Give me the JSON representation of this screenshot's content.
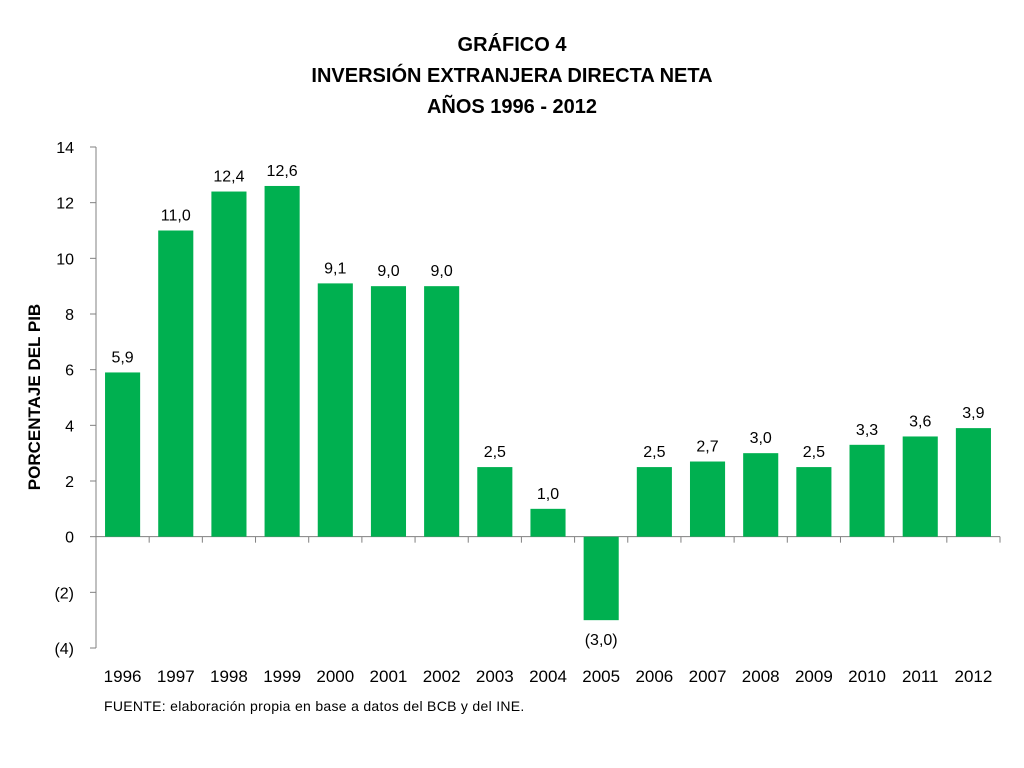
{
  "chart_data": {
    "type": "bar",
    "title_lines": [
      "GRÁFICO 4",
      "INVERSIÓN EXTRANJERA DIRECTA NETA",
      "AÑOS 1996 - 2012"
    ],
    "ylabel": "PORCENTAJE DEL PIB",
    "xlabel": "",
    "categories": [
      "1996",
      "1997",
      "1998",
      "1999",
      "2000",
      "2001",
      "2002",
      "2003",
      "2004",
      "2005",
      "2006",
      "2007",
      "2008",
      "2009",
      "2010",
      "2011",
      "2012"
    ],
    "values": [
      5.9,
      11.0,
      12.4,
      12.6,
      9.1,
      9.0,
      9.0,
      2.5,
      1.0,
      -3.0,
      2.5,
      2.7,
      3.0,
      2.5,
      3.3,
      3.6,
      3.9
    ],
    "data_labels": [
      "5,9",
      "11,0",
      "12,4",
      "12,6",
      "9,1",
      "9,0",
      "9,0",
      "2,5",
      "1,0",
      "(3,0)",
      "2,5",
      "2,7",
      "3,0",
      "2,5",
      "3,3",
      "3,6",
      "3,9"
    ],
    "yticks": [
      14,
      12,
      10,
      8,
      6,
      4,
      2,
      0,
      -2,
      -4
    ],
    "ytick_labels": [
      "14",
      "12",
      "10",
      "8",
      "6",
      "4",
      "2",
      "0",
      "(2)",
      "(4)"
    ],
    "ylim": [
      -4,
      14
    ],
    "grid": false,
    "legend": "none",
    "bar_color": "#00b050",
    "source": "FUENTE: elaboración propia en base a datos del BCB y del INE."
  }
}
